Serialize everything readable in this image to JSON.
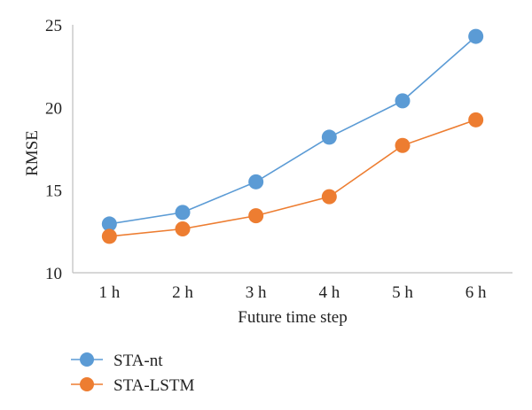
{
  "chart_data": {
    "type": "line",
    "categories": [
      "1 h",
      "2 h",
      "3 h",
      "4 h",
      "5 h",
      "6 h"
    ],
    "series": [
      {
        "name": "STA-nt",
        "values": [
          12.95,
          13.65,
          15.5,
          18.2,
          20.4,
          24.3
        ],
        "color": "#5b9bd5"
      },
      {
        "name": "STA-LSTM",
        "values": [
          12.2,
          12.65,
          13.45,
          14.6,
          17.7,
          19.25
        ],
        "color": "#ed7d31"
      }
    ],
    "xlabel": "Future time step",
    "ylabel": "RMSE",
    "ylim": [
      10,
      25
    ],
    "yticks": [
      10,
      15,
      20,
      25
    ],
    "grid": false,
    "legend_position": "bottom-left"
  }
}
